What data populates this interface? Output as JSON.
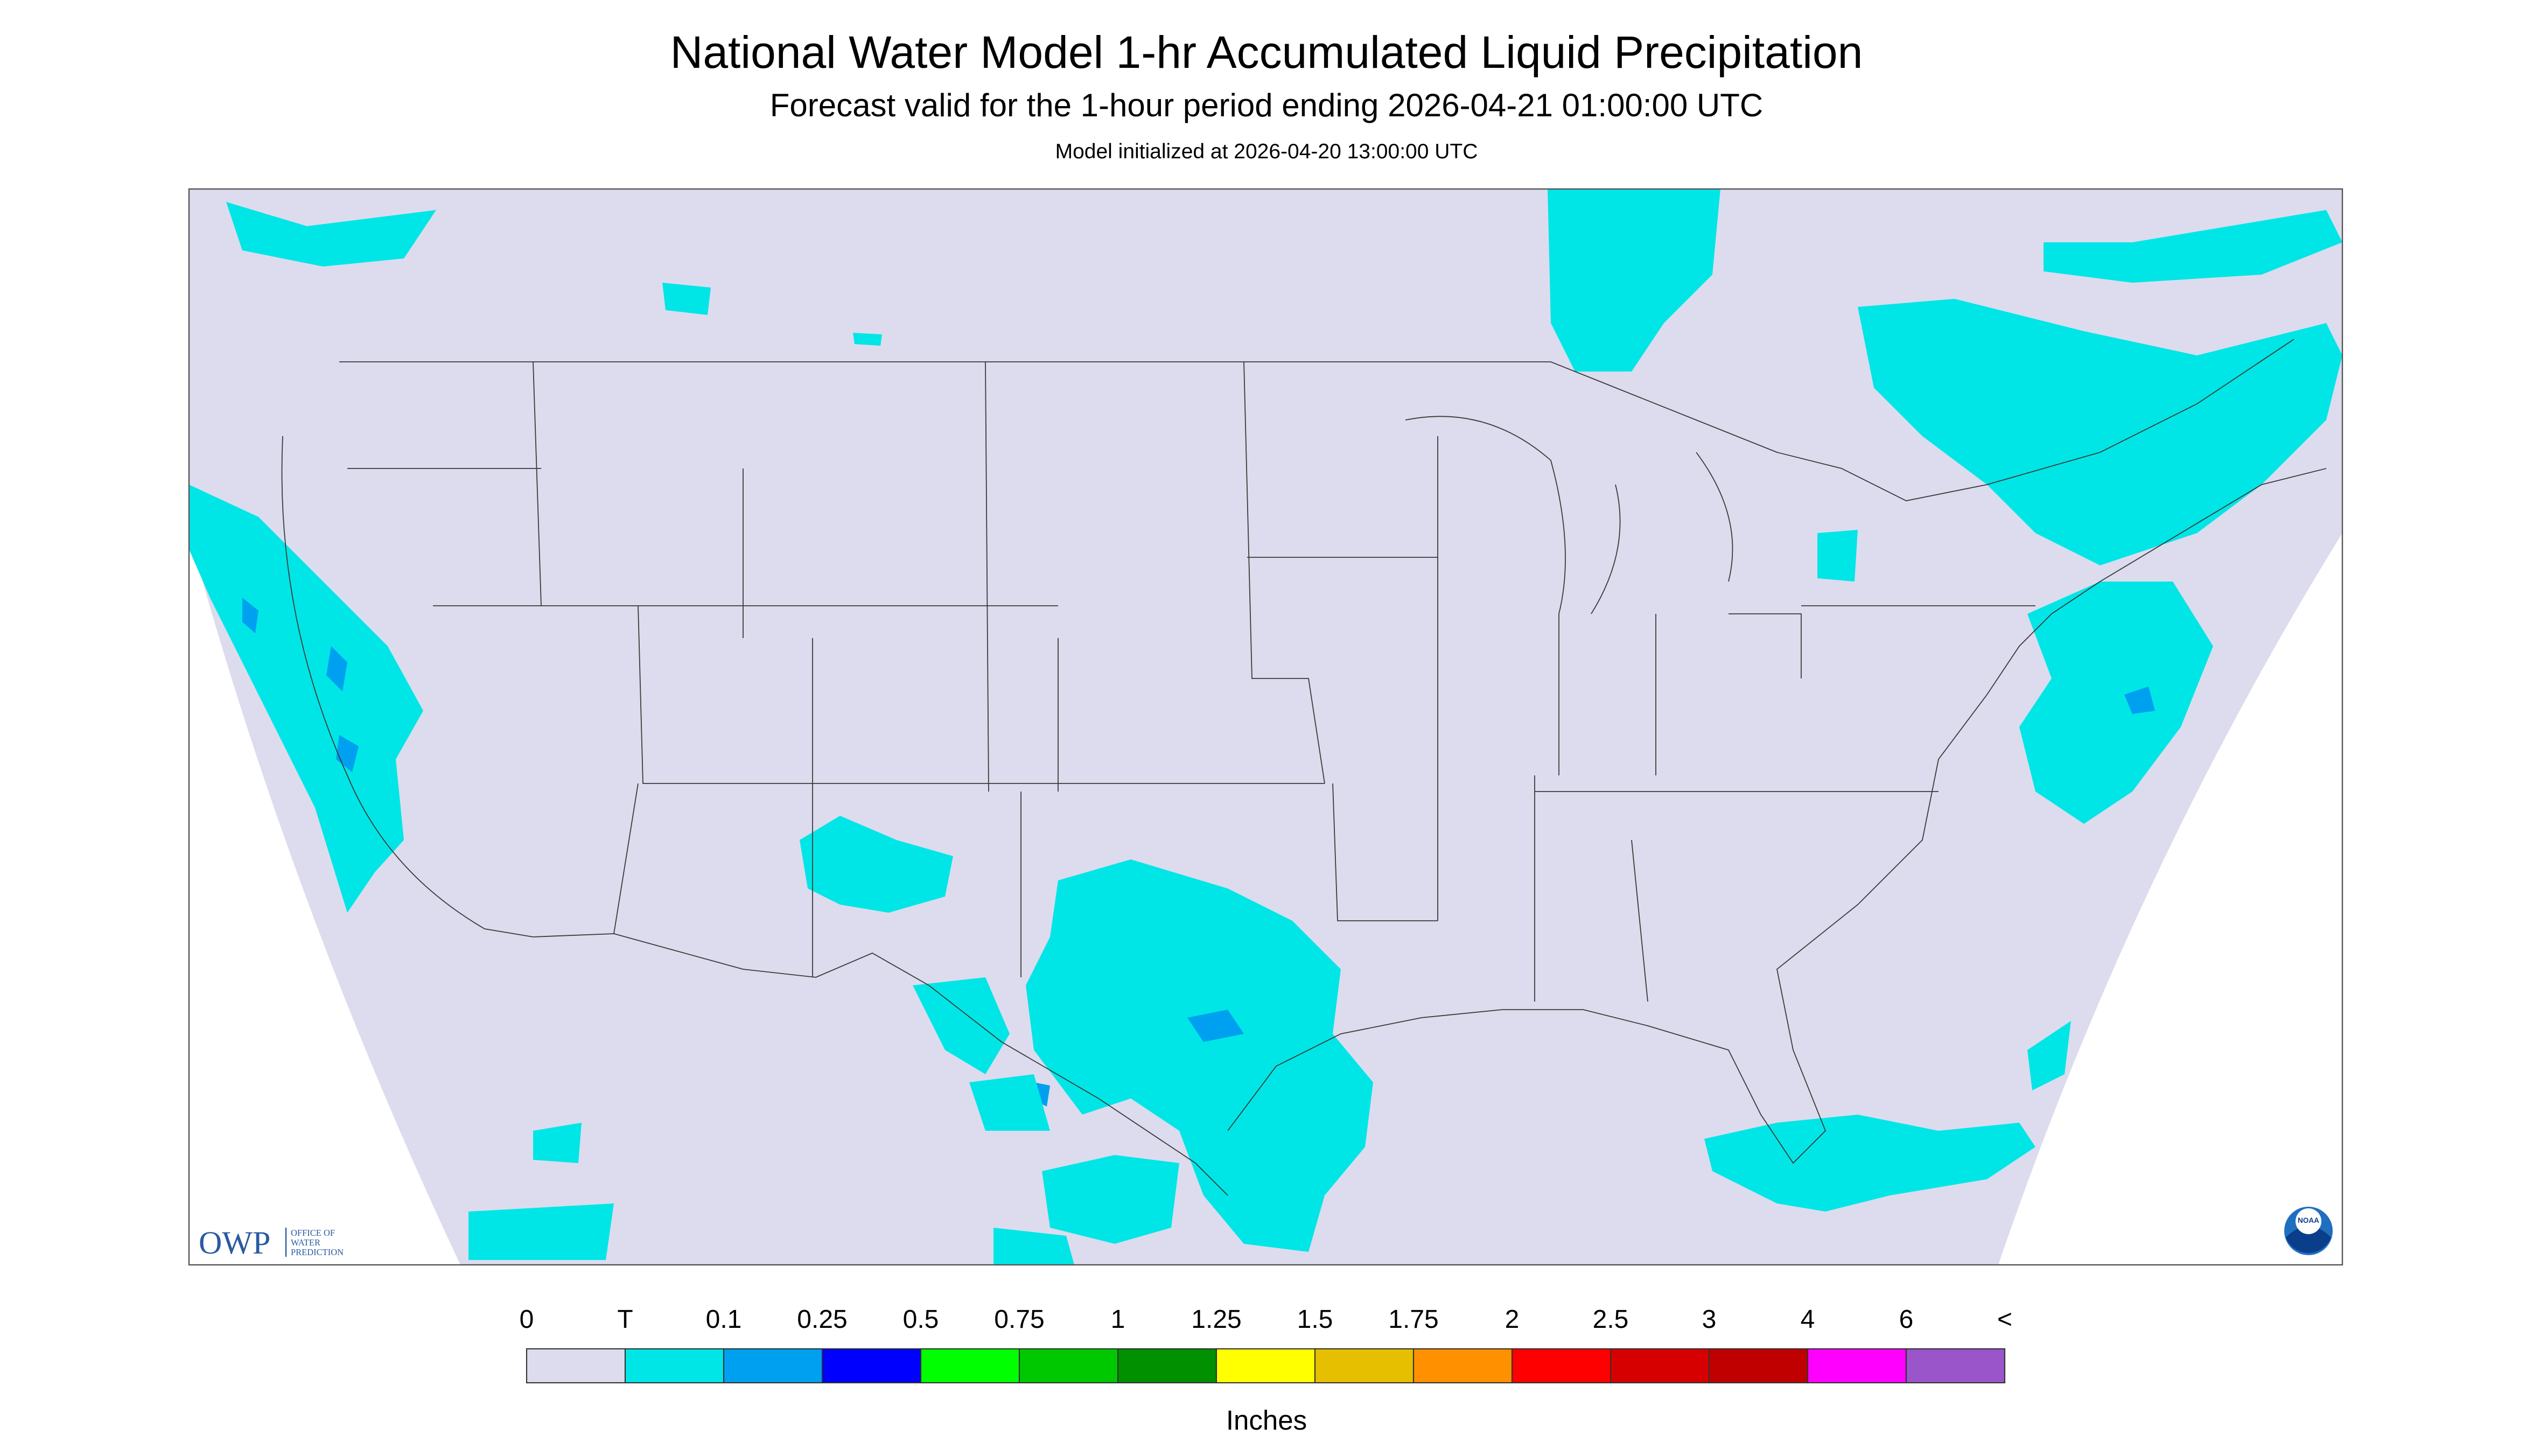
{
  "header": {
    "title": "National Water Model 1-hr Accumulated Liquid Precipitation",
    "subtitle": "Forecast valid for the 1-hour period ending 2026-04-21 01:00:00 UTC",
    "init": "Model initialized at 2026-04-20 13:00:00 UTC"
  },
  "logos": {
    "owp": "OWP",
    "owp_lines": [
      "OFFICE OF",
      "WATER",
      "PREDICTION"
    ],
    "noaa": "NOAA"
  },
  "legend": {
    "labels": [
      "0",
      "T",
      "0.1",
      "0.25",
      "0.5",
      "0.75",
      "1",
      "1.25",
      "1.5",
      "1.75",
      "2",
      "2.5",
      "3",
      "4",
      "6",
      "<"
    ],
    "colors": [
      "#dcdcee",
      "#00e6e6",
      "#00a0f0",
      "#0000ff",
      "#00ff00",
      "#00c800",
      "#009000",
      "#ffff00",
      "#e6c000",
      "#ff9000",
      "#ff0000",
      "#d70000",
      "#c00000",
      "#ff00ff",
      "#9955c9"
    ],
    "unit": "Inches"
  }
}
